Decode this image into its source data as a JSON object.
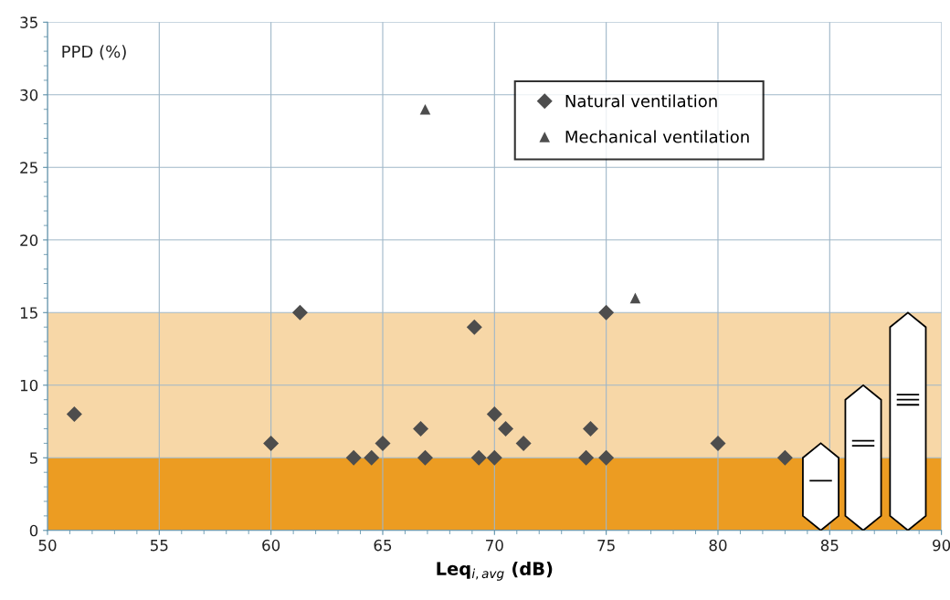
{
  "chart_data": {
    "type": "scatter",
    "xlabel": "Leq$_{i,avg}$ (dB)",
    "ylabel": "PPD (%)",
    "xlim": [
      50,
      90
    ],
    "xticks": [
      50,
      55,
      60,
      65,
      70,
      75,
      80,
      85,
      90
    ],
    "ylim": [
      0,
      35
    ],
    "yticks": [
      0,
      5,
      10,
      15,
      20,
      25,
      30,
      35
    ],
    "grid": true,
    "legend": "top right",
    "bands": [
      {
        "axis": "y",
        "from": 0,
        "to": 5,
        "color": "#ec9c22"
      },
      {
        "axis": "y",
        "from": 5,
        "to": 15,
        "color": "#ec9c22"
      }
    ],
    "series": [
      {
        "name": "Natural ventilation",
        "color": "#4d4d4d",
        "marker": "diamond",
        "x": [
          51.2,
          60.0,
          61.3,
          63.7,
          64.5,
          65.0,
          66.7,
          66.9,
          69.1,
          70.0,
          70.5,
          71.3,
          69.3,
          70.0,
          74.1,
          74.3,
          75.0,
          75.0,
          80.0,
          83.0
        ],
        "values": [
          8,
          6,
          15,
          5,
          5,
          6,
          7,
          5,
          14,
          8,
          7,
          6,
          5,
          5,
          5,
          7,
          15,
          5,
          6,
          5
        ]
      },
      {
        "name": "Mechanical ventilation",
        "color": "#4d4d4d",
        "marker": "triangle",
        "x": [
          66.9,
          76.3
        ],
        "values": [
          29,
          16
        ]
      }
    ]
  }
}
